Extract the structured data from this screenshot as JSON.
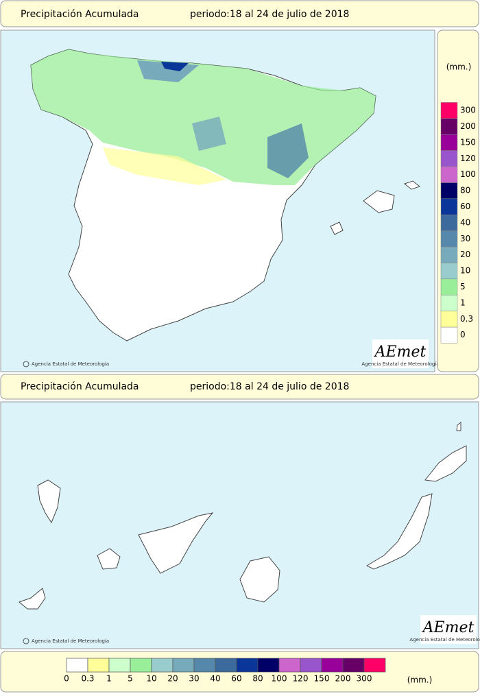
{
  "header": {
    "title": "Precipitación Acumulada",
    "period": "periodo:18 al 24 de julio de 2018"
  },
  "credit": "Agencia Estatal de Meteorología",
  "logo": {
    "name": "AEmet",
    "subtitle": "Agencia Estatal de Meteorología"
  },
  "legend": {
    "unit": "(mm.)",
    "levels": [
      0,
      0.3,
      1,
      5,
      10,
      20,
      30,
      40,
      60,
      80,
      100,
      120,
      150,
      200,
      300
    ],
    "colors": [
      "#ffffff",
      "#ffff99",
      "#ccffcc",
      "#99ee99",
      "#99cccc",
      "#77aabb",
      "#5588aa",
      "#3d6a9c",
      "#0a3599",
      "#000066",
      "#cc66cc",
      "#9955cc",
      "#990099",
      "#660066",
      "#ff0066"
    ]
  }
}
